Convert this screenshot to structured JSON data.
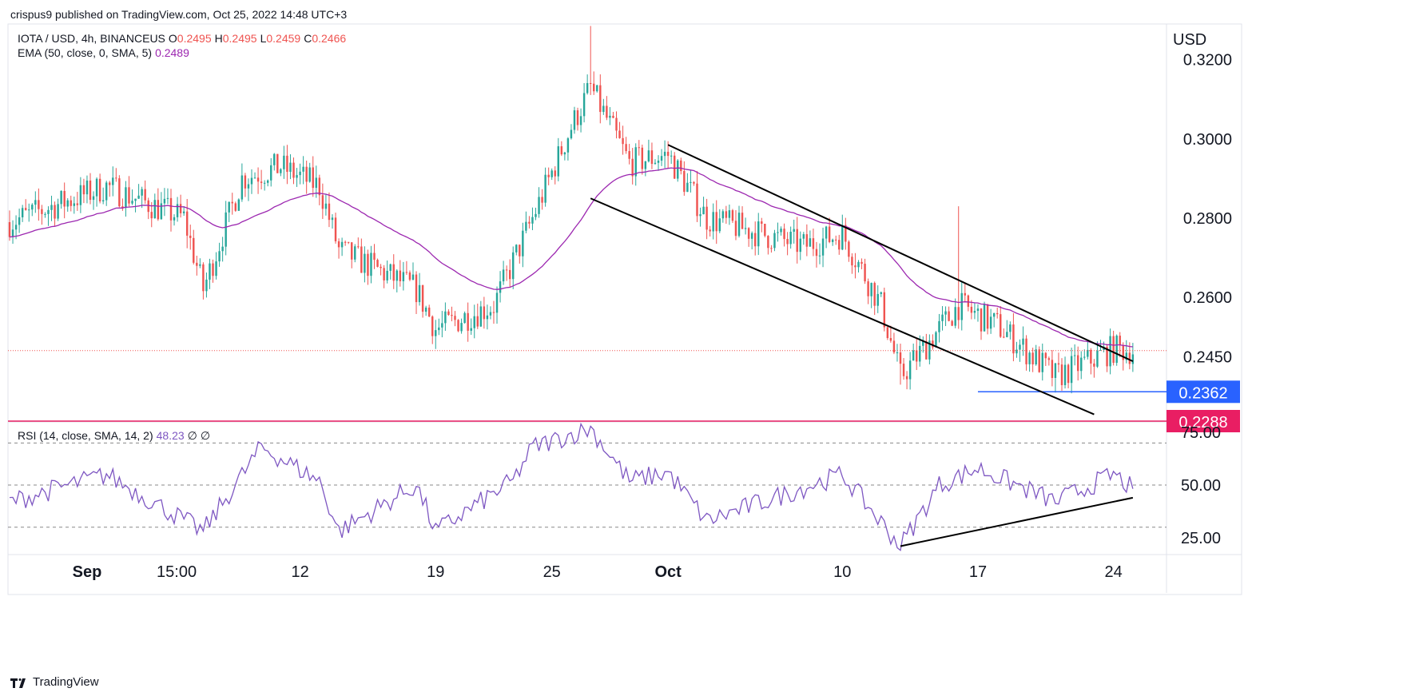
{
  "header": {
    "publisher": "crispus9 published on TradingView.com, Oct 25, 2022 14:48 UTC+3"
  },
  "legend": {
    "main": {
      "symbol": "IOTA / USD, 4h, BINANCEUS",
      "o_label": "O",
      "o": "0.2495",
      "h_label": "H",
      "h": "0.2495",
      "l_label": "L",
      "l": "0.2459",
      "c_label": "C",
      "c": "0.2466"
    },
    "ema": {
      "name": "EMA (50, close, 0, SMA, 5)",
      "value": "0.2489"
    },
    "rsi": {
      "name": "RSI (14, close, SMA, 14, 2)",
      "value": "48.23",
      "extra1": "∅",
      "extra2": "∅"
    }
  },
  "footer": {
    "brand": "TradingView"
  },
  "colors": {
    "up": "#26a69a",
    "down": "#ef5350",
    "ema": "#9c27b0",
    "rsi": "#7e57c2",
    "hline_blue": "#2962ff",
    "hline_red": "#e91e63",
    "trend": "#000000"
  },
  "chart_data": [
    {
      "type": "candlestick",
      "title": "IOTA / USD, 4h, BINANCEUS",
      "price_axis": {
        "unit_label": "USD",
        "ticks": [
          "0.3200",
          "0.3000",
          "0.2800",
          "0.2600",
          "0.2450"
        ],
        "range": [
          0.229,
          0.329
        ]
      },
      "time_axis": {
        "ticks": [
          "Sep",
          "15:00",
          "12",
          "19",
          "25",
          "Oct",
          "10",
          "17",
          "24"
        ]
      },
      "ohlc_keypoints": [
        {
          "t": "Aug 28",
          "close": 0.279
        },
        {
          "t": "Sep 2",
          "close": 0.288
        },
        {
          "t": "Sep 6",
          "close": 0.28
        },
        {
          "t": "Sep 7",
          "close": 0.262
        },
        {
          "t": "Sep 9",
          "close": 0.29
        },
        {
          "t": "Sep 11",
          "close": 0.293
        },
        {
          "t": "Sep 13",
          "close": 0.288
        },
        {
          "t": "Sep 14",
          "close": 0.272
        },
        {
          "t": "Sep 18",
          "close": 0.262
        },
        {
          "t": "Sep 19",
          "close": 0.252
        },
        {
          "t": "Sep 22",
          "close": 0.258
        },
        {
          "t": "Sep 24",
          "close": 0.28
        },
        {
          "t": "Sep 26",
          "close": 0.303
        },
        {
          "t": "Sep 27",
          "close": 0.313
        },
        {
          "t": "Sep 29",
          "close": 0.294
        },
        {
          "t": "Oct 1",
          "close": 0.296
        },
        {
          "t": "Oct 3",
          "close": 0.28
        },
        {
          "t": "Oct 8",
          "close": 0.273
        },
        {
          "t": "Oct 10",
          "close": 0.276
        },
        {
          "t": "Oct 12",
          "close": 0.258
        },
        {
          "t": "Oct 13",
          "close": 0.24
        },
        {
          "t": "Oct 16",
          "close": 0.258
        },
        {
          "t": "Oct 18",
          "close": 0.253
        },
        {
          "t": "Oct 21",
          "close": 0.24
        },
        {
          "t": "Oct 24",
          "close": 0.247
        },
        {
          "t": "Oct 25",
          "close": 0.2466
        }
      ],
      "ema_line": {
        "name": "EMA (50, close, 0, SMA, 5)",
        "last": 0.2489
      },
      "horizontal_lines": [
        {
          "price": 0.2362,
          "label": "0.2362",
          "color": "#2962ff"
        },
        {
          "price": 0.2288,
          "label": "0.2288",
          "color": "#e91e63"
        },
        {
          "price": 0.2466,
          "style": "dotted",
          "color": "#ef5350"
        }
      ],
      "trendlines": [
        {
          "from": {
            "t": "Oct 1",
            "price": 0.2985
          },
          "to": {
            "t": "Oct 25",
            "price": 0.2439
          }
        },
        {
          "from": {
            "t": "Sep 27",
            "price": 0.285
          },
          "to": {
            "t": "Oct 23",
            "price": 0.2305
          }
        }
      ]
    },
    {
      "type": "line",
      "title": "RSI (14, close, SMA, 14, 2)",
      "y_ticks": [
        "75.00",
        "50.00",
        "25.00"
      ],
      "ylim": [
        17,
        80
      ],
      "bands": [
        70,
        50,
        30
      ],
      "keypoints": [
        {
          "t": "Aug 28",
          "y": 42
        },
        {
          "t": "Sep 2",
          "y": 55
        },
        {
          "t": "Sep 7",
          "y": 28
        },
        {
          "t": "Sep 10",
          "y": 68
        },
        {
          "t": "Sep 13",
          "y": 52
        },
        {
          "t": "Sep 14",
          "y": 28
        },
        {
          "t": "Sep 18",
          "y": 50
        },
        {
          "t": "Sep 19",
          "y": 28
        },
        {
          "t": "Sep 23",
          "y": 52
        },
        {
          "t": "Sep 24",
          "y": 68
        },
        {
          "t": "Sep 27",
          "y": 77
        },
        {
          "t": "Sep 29",
          "y": 52
        },
        {
          "t": "Oct 1",
          "y": 56
        },
        {
          "t": "Oct 3",
          "y": 33
        },
        {
          "t": "Oct 10",
          "y": 55
        },
        {
          "t": "Oct 13",
          "y": 21
        },
        {
          "t": "Oct 15",
          "y": 50
        },
        {
          "t": "Oct 17",
          "y": 58
        },
        {
          "t": "Oct 21",
          "y": 42
        },
        {
          "t": "Oct 24",
          "y": 55
        },
        {
          "t": "Oct 25",
          "y": 48.23
        }
      ],
      "trendline": {
        "from": {
          "t": "Oct 13",
          "y": 21
        },
        "to": {
          "t": "Oct 25",
          "y": 44
        }
      }
    }
  ]
}
